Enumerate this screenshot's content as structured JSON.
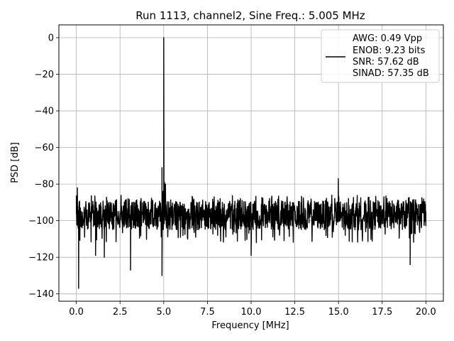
{
  "chart_data": {
    "type": "line",
    "title": "Run 1113, channel2, Sine Freq.: 5.005 MHz",
    "xlabel": "Frequency [MHz]",
    "ylabel": "PSD [dB]",
    "xlim": [
      -1.0,
      21.0
    ],
    "ylim": [
      -144,
      7
    ],
    "x_ticks": [
      0.0,
      2.5,
      5.0,
      7.5,
      10.0,
      12.5,
      15.0,
      17.5,
      20.0
    ],
    "x_tick_labels": [
      "0.0",
      "2.5",
      "5.0",
      "7.5",
      "10.0",
      "12.5",
      "15.0",
      "17.5",
      "20.0"
    ],
    "y_ticks": [
      0,
      -20,
      -40,
      -60,
      -80,
      -100,
      -120,
      -140
    ],
    "y_tick_labels": [
      "0",
      "−20",
      "−40",
      "−60",
      "−80",
      "−100",
      "−120",
      "−140"
    ],
    "grid": true,
    "legend_position": "top-right",
    "legend_entries": [
      "AWG: 0.49 Vpp",
      "ENOB: 9.23 bits",
      "SNR: 57.62 dB",
      "SINAD: 57.35 dB"
    ],
    "line_color": "#000000",
    "noise_floor_db": -97,
    "noise_band_db": [
      -112,
      -86
    ],
    "peaks": [
      {
        "x": 0.0,
        "y": -95
      },
      {
        "x": 0.06,
        "y": -82
      },
      {
        "x": 0.1,
        "y": -104
      },
      {
        "x": 0.13,
        "y": -137
      },
      {
        "x": 0.15,
        "y": -110
      },
      {
        "x": 4.9,
        "y": -71
      },
      {
        "x": 4.96,
        "y": -84
      },
      {
        "x": 5.0,
        "y": 0
      },
      {
        "x": 5.04,
        "y": -79
      },
      {
        "x": 5.1,
        "y": -80
      },
      {
        "x": 14.99,
        "y": -77
      },
      {
        "x": 15.02,
        "y": -87
      },
      {
        "x": 20.0,
        "y": -95
      }
    ],
    "dips": [
      {
        "x": 0.13,
        "y": -137
      },
      {
        "x": 1.1,
        "y": -119
      },
      {
        "x": 1.6,
        "y": -120
      },
      {
        "x": 3.1,
        "y": -127
      },
      {
        "x": 4.9,
        "y": -130
      },
      {
        "x": 10.0,
        "y": -119
      },
      {
        "x": 19.1,
        "y": -124
      }
    ]
  }
}
